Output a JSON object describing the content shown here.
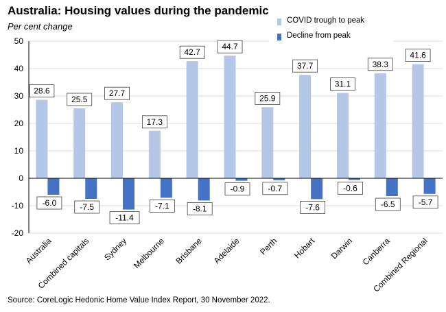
{
  "title": "Australia: Housing values during the pandemic",
  "subtitle": "Per cent change",
  "source": "Source: CoreLogic Hedonic Home Value Index Report, 30 November 2022.",
  "colors": {
    "series1": "#b4c7e7",
    "series2": "#4472c4",
    "grid": "#d9d9d9",
    "axis": "#000000"
  },
  "chart_data": {
    "type": "bar",
    "title": "Australia: Housing values during the pandemic",
    "ylabel": "Per cent change",
    "xlabel": "",
    "ylim": [
      -20,
      50
    ],
    "yticks": [
      -20,
      -10,
      0,
      10,
      20,
      30,
      40,
      50
    ],
    "grid": true,
    "legend_position": "top-right",
    "categories": [
      "Australia",
      "Combined capitals",
      "Sydney",
      "Melbourne",
      "Brisbane",
      "Adelaide",
      "Perth",
      "Hobart",
      "Darwin",
      "Canberra",
      "Combined Regional"
    ],
    "series": [
      {
        "name": "COVID trough to peak",
        "values": [
          28.6,
          25.5,
          27.7,
          17.3,
          42.7,
          44.7,
          25.9,
          37.7,
          31.1,
          38.3,
          41.6
        ]
      },
      {
        "name": "Decline from peak",
        "values": [
          -6.0,
          -7.5,
          -11.4,
          -7.1,
          -8.1,
          -0.9,
          -0.7,
          -7.6,
          -0.6,
          -6.5,
          -5.7
        ]
      }
    ]
  }
}
